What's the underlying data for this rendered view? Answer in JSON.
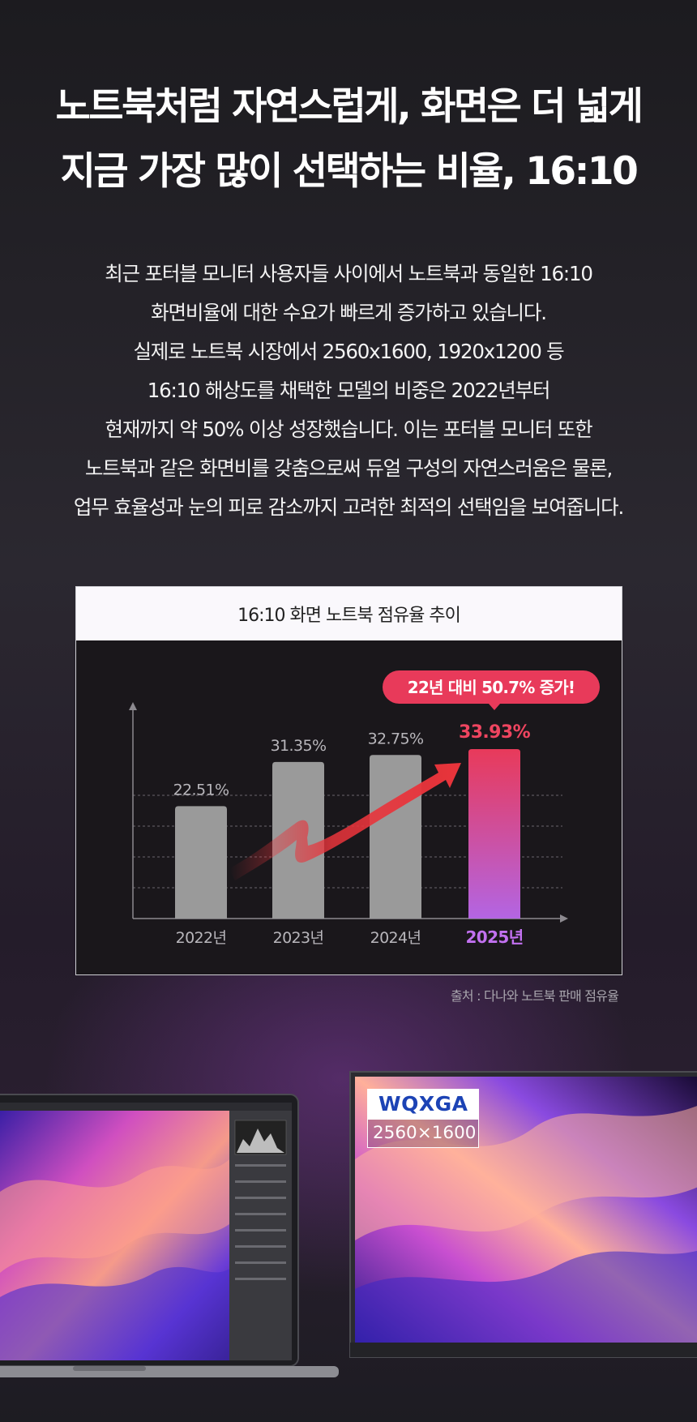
{
  "headline": {
    "line1": "노트북처럼 자연스럽게, 화면은 더 넓게",
    "line2": "지금 가장 많이 선택하는 비율, 16:10"
  },
  "intro": [
    "최근 포터블 모니터 사용자들 사이에서 노트북과 동일한 16:10",
    "화면비율에 대한 수요가 빠르게 증가하고 있습니다.",
    "실제로 노트북 시장에서 2560x1600, 1920x1200 등",
    "16:10 해상도를 채택한 모델의 비중은 2022년부터",
    "현재까지 약 50% 이상 성장했습니다. 이는 포터블 모니터 또한",
    "노트북과 같은 화면비를 갖춤으로써 듀얼 구성의 자연스러움은 물론,",
    "업무 효율성과 눈의 피로 감소까지 고려한 최적의 선택임을 보여줍니다."
  ],
  "chart_data": {
    "type": "bar",
    "title": "16:10 화면 노트북 점유율 추이",
    "categories": [
      "2022년",
      "2023년",
      "2024년",
      "2025년"
    ],
    "values": [
      22.51,
      31.35,
      32.75,
      33.93
    ],
    "value_labels": [
      "22.51%",
      "31.35%",
      "32.75%",
      "33.93%"
    ],
    "highlight_index": 3,
    "callout": "22년 대비 50.7% 증가!",
    "grid": true,
    "colors": {
      "bar": "#9a9a9a",
      "highlight_top": "#e83a5a",
      "highlight_bottom": "#b365e3",
      "arrow": "#e8343b",
      "callout_bg": "#e83a5a",
      "highlight_label": "#ef4560",
      "highlight_category": "#c271f0"
    }
  },
  "source_note": "출처 : 다나와 노트북 판매 점유율",
  "device_badge": {
    "name": "WQXGA",
    "resolution": "2560×1600"
  }
}
